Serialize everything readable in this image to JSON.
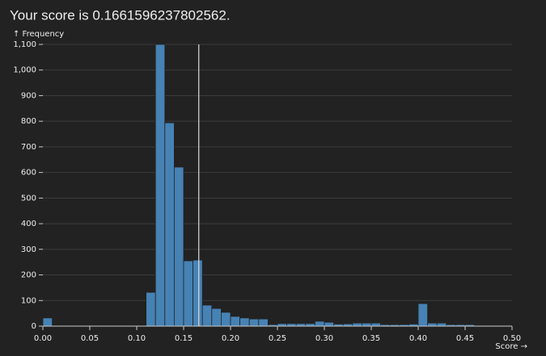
{
  "chart_data": {
    "type": "histogram",
    "title": "Your score is 0.1661596237802562.",
    "marker": 0.1661596237802562,
    "ylabel": "↑ Frequency",
    "xlabel": "Score →",
    "bins": [
      0,
      0.01,
      0.02,
      0.03,
      0.04,
      0.05,
      0.06,
      0.07,
      0.08,
      0.09,
      0.1,
      0.11,
      0.12,
      0.13,
      0.14,
      0.15,
      0.16,
      0.17,
      0.18,
      0.19,
      0.2,
      0.21,
      0.22,
      0.23,
      0.24,
      0.25,
      0.26,
      0.27,
      0.28,
      0.29,
      0.3,
      0.31,
      0.32,
      0.33,
      0.34,
      0.35,
      0.36,
      0.37,
      0.38,
      0.39,
      0.4,
      0.41,
      0.42,
      0.43,
      0.44,
      0.45,
      0.46,
      0.47,
      0.48,
      0.49,
      0.5
    ],
    "counts": [
      32,
      2,
      0,
      0,
      0,
      0,
      0,
      0,
      0,
      1,
      3,
      132,
      1100,
      794,
      621,
      255,
      258,
      82,
      69,
      54,
      38,
      32,
      28,
      28,
      6,
      10,
      10,
      10,
      10,
      19,
      15,
      8,
      9,
      12,
      12,
      12,
      6,
      6,
      6,
      8,
      88,
      12,
      12,
      6,
      6,
      6,
      3,
      3,
      3,
      0
    ],
    "color": "#4682b4",
    "xlim": [
      0,
      0.5
    ],
    "ylim": [
      0,
      1100
    ],
    "xticks": [
      {
        "value": 0,
        "label": "0.00"
      },
      {
        "value": 0.05,
        "label": "0.05"
      },
      {
        "value": 0.1,
        "label": "0.10"
      },
      {
        "value": 0.15,
        "label": "0.15"
      },
      {
        "value": 0.2,
        "label": "0.20"
      },
      {
        "value": 0.25,
        "label": "0.25"
      },
      {
        "value": 0.3,
        "label": "0.30"
      },
      {
        "value": 0.35,
        "label": "0.35"
      },
      {
        "value": 0.4,
        "label": "0.40"
      },
      {
        "value": 0.45,
        "label": "0.45"
      },
      {
        "value": 0.5,
        "label": "0.50"
      }
    ],
    "yticks": [
      0,
      100,
      200,
      300,
      400,
      500,
      600,
      700,
      800,
      900,
      {
        "value": 1000,
        "label": "1,000"
      },
      {
        "value": 1100,
        "label": "1,100"
      }
    ],
    "grid": true
  }
}
